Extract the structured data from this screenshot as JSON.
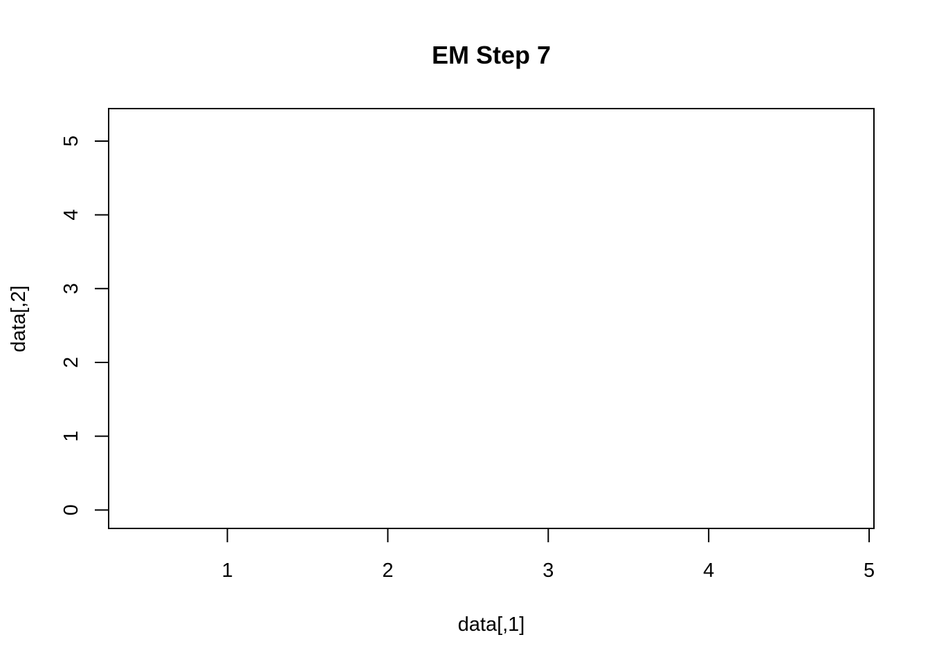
{
  "chart_data": {
    "type": "scatter",
    "title": "EM Step 7",
    "xlabel": "data[,1]",
    "ylabel": "data[,2]",
    "xlim": [
      0.26,
      5.03
    ],
    "ylim": [
      -0.25,
      5.44
    ],
    "x_ticks": [
      1,
      2,
      3,
      4,
      5
    ],
    "y_ticks": [
      0,
      1,
      2,
      3,
      4,
      5
    ],
    "x_tick_labels": [
      "1",
      "2",
      "3",
      "4",
      "5"
    ],
    "y_tick_labels": [
      "0",
      "1",
      "2",
      "3",
      "4",
      "5"
    ],
    "series": [],
    "grid": false,
    "colors": {
      "axis": "#000000",
      "background": "#ffffff"
    }
  }
}
